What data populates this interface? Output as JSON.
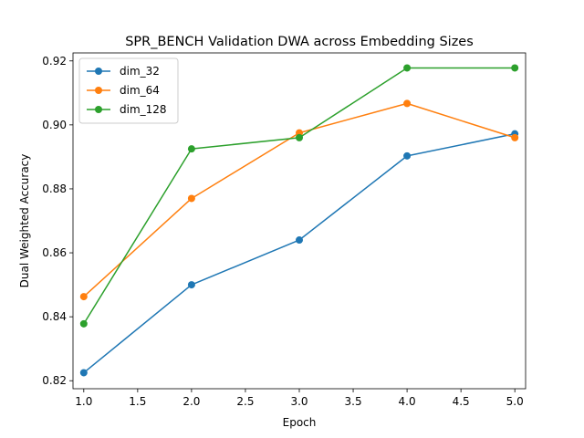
{
  "chart_data": {
    "type": "line",
    "title": "SPR_BENCH Validation DWA across Embedding Sizes",
    "xlabel": "Epoch",
    "ylabel": "Dual Weighted Accuracy",
    "xlim": [
      0.9,
      5.1
    ],
    "ylim": [
      0.8175,
      0.9225
    ],
    "xticks": [
      "1.0",
      "1.5",
      "2.0",
      "2.5",
      "3.0",
      "3.5",
      "4.0",
      "4.5",
      "5.0"
    ],
    "yticks": [
      "0.82",
      "0.84",
      "0.86",
      "0.88",
      "0.90",
      "0.92"
    ],
    "grid": false,
    "legend_position": "top-left",
    "x": [
      1,
      2,
      3,
      4,
      5
    ],
    "series": [
      {
        "name": "dim_32",
        "color": "#1f77b4",
        "values": [
          0.8225,
          0.85,
          0.864,
          0.8903,
          0.8972
        ]
      },
      {
        "name": "dim_64",
        "color": "#ff7f0e",
        "values": [
          0.8463,
          0.877,
          0.8975,
          0.9067,
          0.896
        ]
      },
      {
        "name": "dim_128",
        "color": "#2ca02c",
        "values": [
          0.8378,
          0.8925,
          0.896,
          0.9178,
          0.9178
        ]
      }
    ]
  }
}
